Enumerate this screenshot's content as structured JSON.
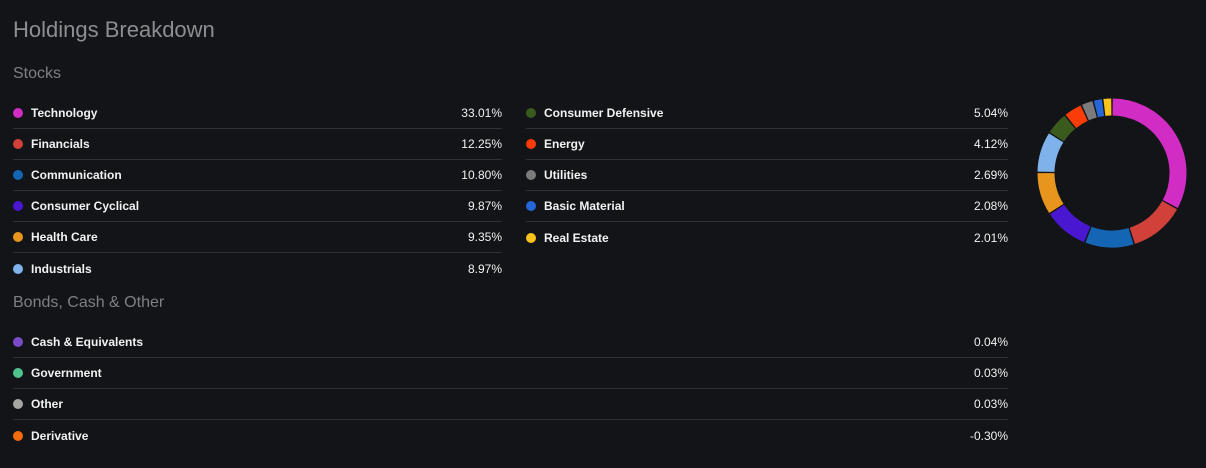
{
  "title": "Holdings Breakdown",
  "stocks_heading": "Stocks",
  "bonds_heading": "Bonds, Cash & Other",
  "stocks_left": [
    {
      "label": "Technology",
      "value": "33.01%",
      "color": "#d12cc3"
    },
    {
      "label": "Financials",
      "value": "12.25%",
      "color": "#d2403a"
    },
    {
      "label": "Communication",
      "value": "10.80%",
      "color": "#1565b5"
    },
    {
      "label": "Consumer Cyclical",
      "value": "9.87%",
      "color": "#4a17d1"
    },
    {
      "label": "Health Care",
      "value": "9.35%",
      "color": "#e8951d"
    },
    {
      "label": "Industrials",
      "value": "8.97%",
      "color": "#7fb2ea"
    }
  ],
  "stocks_right": [
    {
      "label": "Consumer Defensive",
      "value": "5.04%",
      "color": "#3b5a1e"
    },
    {
      "label": "Energy",
      "value": "4.12%",
      "color": "#fa3c09"
    },
    {
      "label": "Utilities",
      "value": "2.69%",
      "color": "#7b7b7b"
    },
    {
      "label": "Basic Material",
      "value": "2.08%",
      "color": "#2566d9"
    },
    {
      "label": "Real Estate",
      "value": "2.01%",
      "color": "#f7c31c"
    }
  ],
  "bonds": [
    {
      "label": "Cash & Equivalents",
      "value": "0.04%",
      "color": "#7a4bc6"
    },
    {
      "label": "Government",
      "value": "0.03%",
      "color": "#4fc38e"
    },
    {
      "label": "Other",
      "value": "0.03%",
      "color": "#a6a6a6"
    },
    {
      "label": "Derivative",
      "value": "-0.30%",
      "color": "#f26b0d"
    }
  ],
  "chart_data": {
    "type": "pie",
    "title": "",
    "categories": [
      "Technology",
      "Financials",
      "Communication",
      "Consumer Cyclical",
      "Health Care",
      "Industrials",
      "Consumer Defensive",
      "Energy",
      "Utilities",
      "Basic Material",
      "Real Estate"
    ],
    "values": [
      33.01,
      12.25,
      10.8,
      9.87,
      9.35,
      8.97,
      5.04,
      4.12,
      2.69,
      2.08,
      2.01
    ],
    "colors": [
      "#d12cc3",
      "#d2403a",
      "#1565b5",
      "#4a17d1",
      "#e8951d",
      "#7fb2ea",
      "#3b5a1e",
      "#fa3c09",
      "#7b7b7b",
      "#2566d9",
      "#f7c31c"
    ],
    "donut": true
  }
}
